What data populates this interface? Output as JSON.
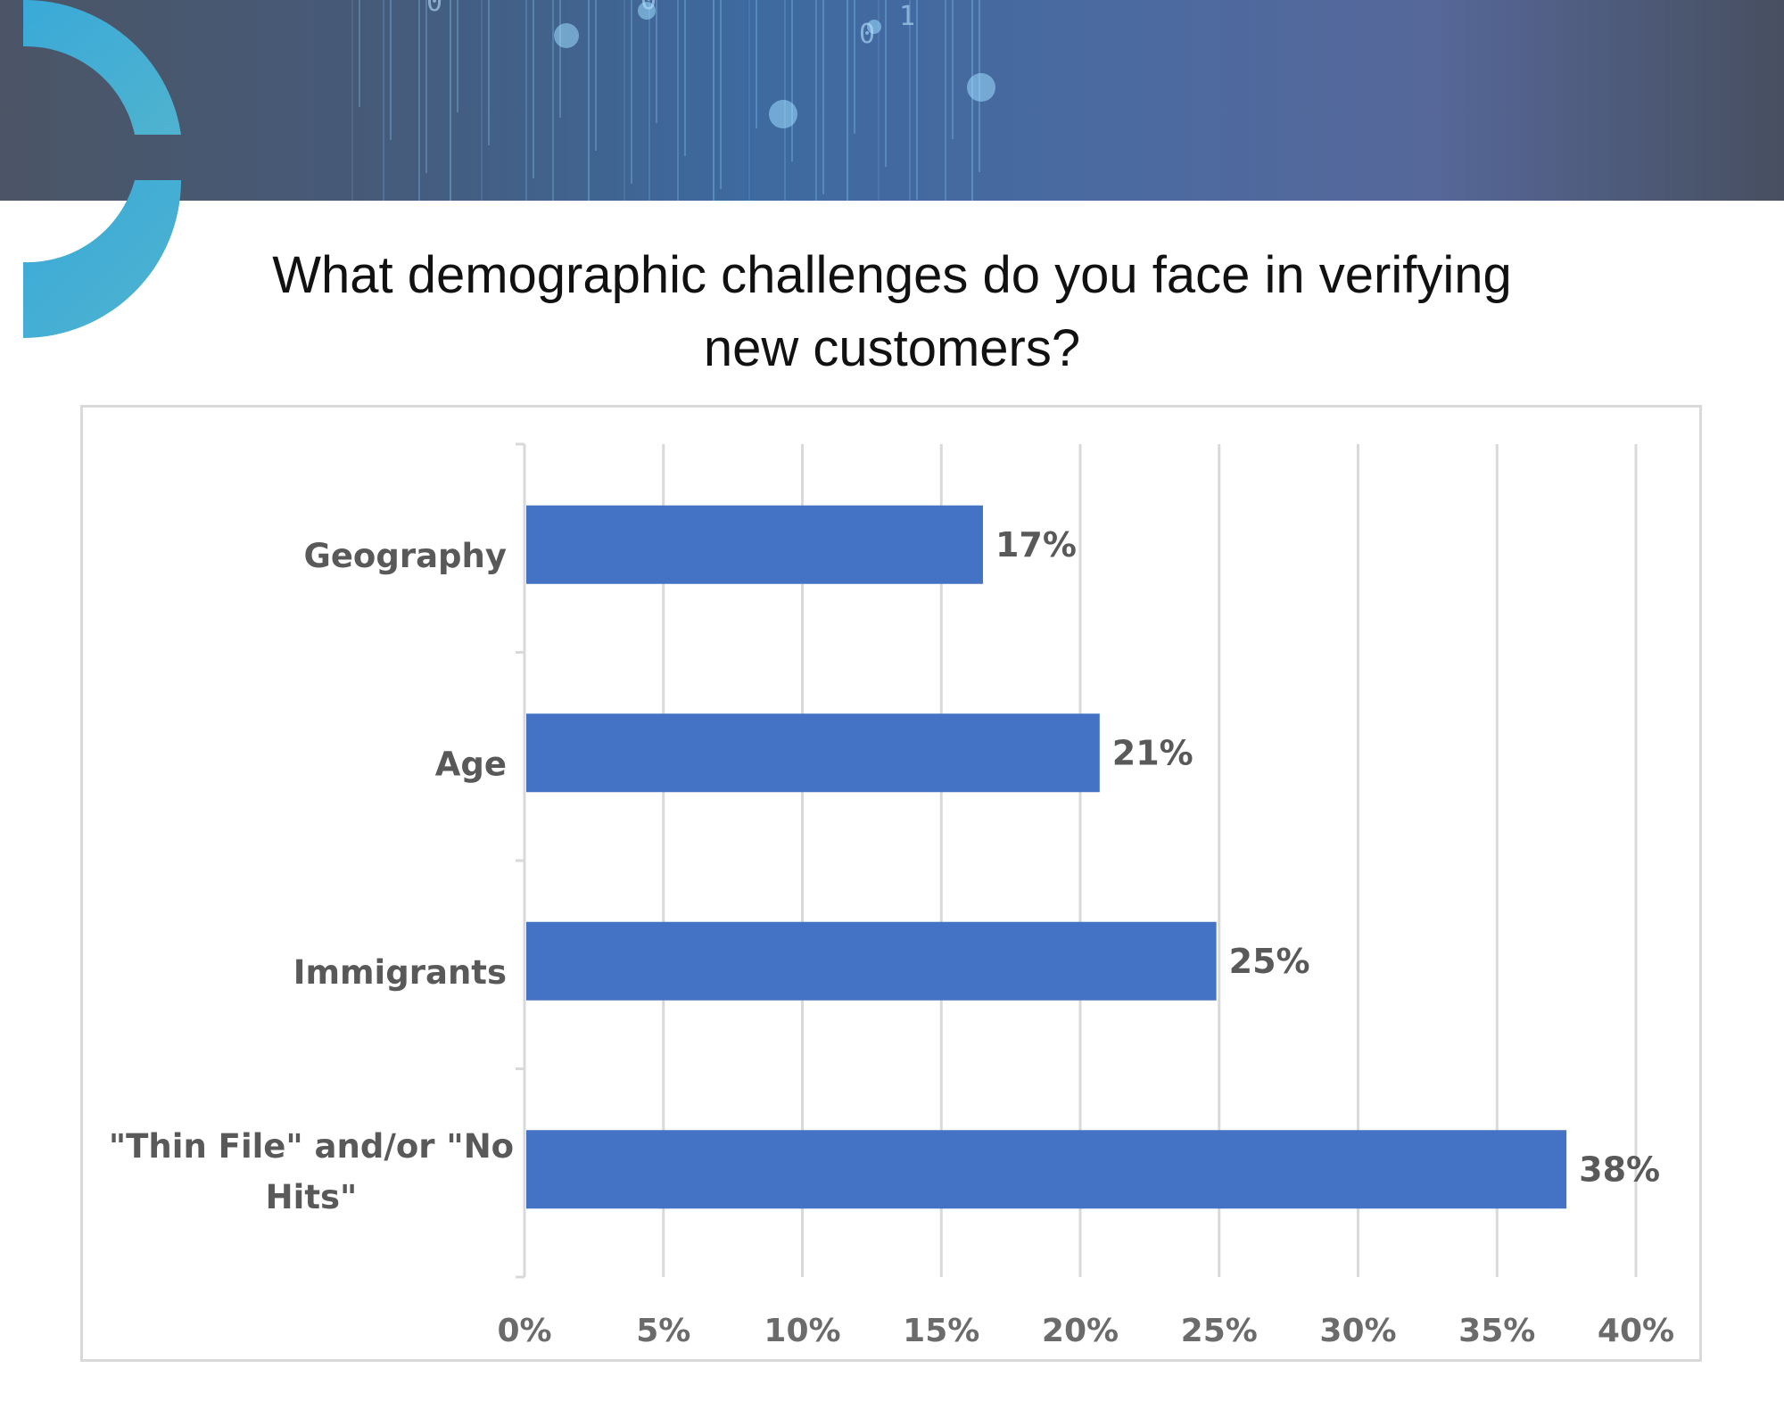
{
  "banner": {
    "digits": [
      "0",
      "0",
      "0",
      "1"
    ]
  },
  "chart_data": {
    "type": "bar",
    "orientation": "horizontal",
    "title": "What demographic challenges do you face in verifying new customers?",
    "title_lines": [
      "What demographic challenges do you face in verifying",
      "new customers?"
    ],
    "categories": [
      "Geography",
      "Age",
      "Immigrants",
      "\"Thin File\" and/or \"No Hits\""
    ],
    "category_lines": [
      [
        "Geography"
      ],
      [
        "Age"
      ],
      [
        "Immigrants"
      ],
      [
        "\"Thin File\" and/or \"No",
        "Hits\""
      ]
    ],
    "values": [
      16.5,
      20.7,
      24.9,
      37.5
    ],
    "value_labels": [
      "17%",
      "21%",
      "25%",
      "38%"
    ],
    "xlim": [
      0,
      40
    ],
    "xticks": [
      0,
      5,
      10,
      15,
      20,
      25,
      30,
      35,
      40
    ],
    "xtick_labels": [
      "0%",
      "5%",
      "10%",
      "15%",
      "20%",
      "25%",
      "30%",
      "35%",
      "40%"
    ],
    "grid": "vertical",
    "legend": "none",
    "colors": {
      "bar": "#4472c4",
      "grid": "#d9d9d9",
      "label": "#595959"
    }
  }
}
